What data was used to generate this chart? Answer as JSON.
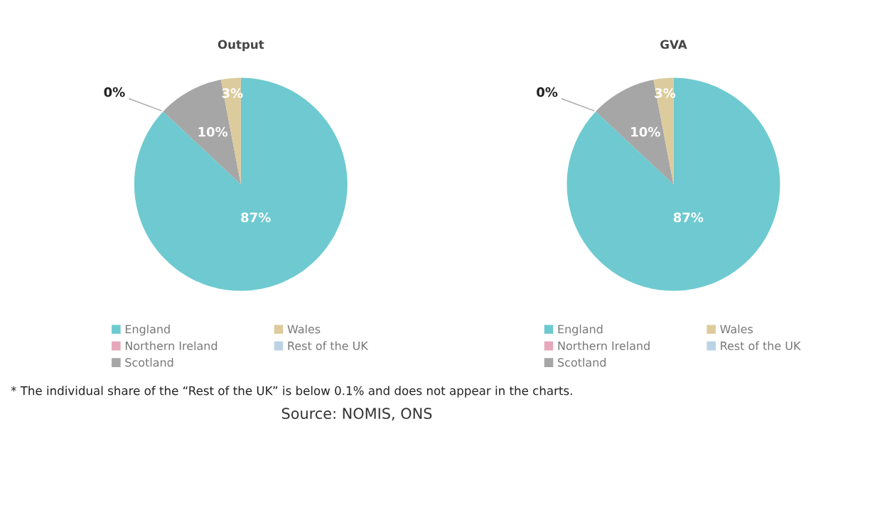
{
  "chart_data": [
    {
      "type": "pie",
      "title": "Output",
      "categories": [
        "England",
        "Northern Ireland",
        "Scotland",
        "Wales",
        "Rest of the UK"
      ],
      "values": [
        87,
        0,
        10,
        3,
        0
      ],
      "colors": [
        "#6ecad0",
        "#e6a9bb",
        "#a6a6a6",
        "#dccb9c",
        "#bcd3e6"
      ],
      "value_labels": [
        "87%",
        "0%",
        "10%",
        "3%",
        null
      ],
      "legend": "bottom",
      "annotations": [
        "* The individual share of the “Rest of the UK” is below 0.1% and does not appear in the charts.",
        "Source: NOMIS, ONS"
      ]
    },
    {
      "type": "pie",
      "title": "GVA",
      "categories": [
        "England",
        "Northern Ireland",
        "Scotland",
        "Wales",
        "Rest of the UK"
      ],
      "values": [
        87,
        0,
        10,
        3,
        0
      ],
      "colors": [
        "#6ecad0",
        "#e6a9bb",
        "#a6a6a6",
        "#dccb9c",
        "#bcd3e6"
      ],
      "value_labels": [
        "87%",
        "0%",
        "10%",
        "3%",
        null
      ],
      "legend": "bottom"
    }
  ]
}
